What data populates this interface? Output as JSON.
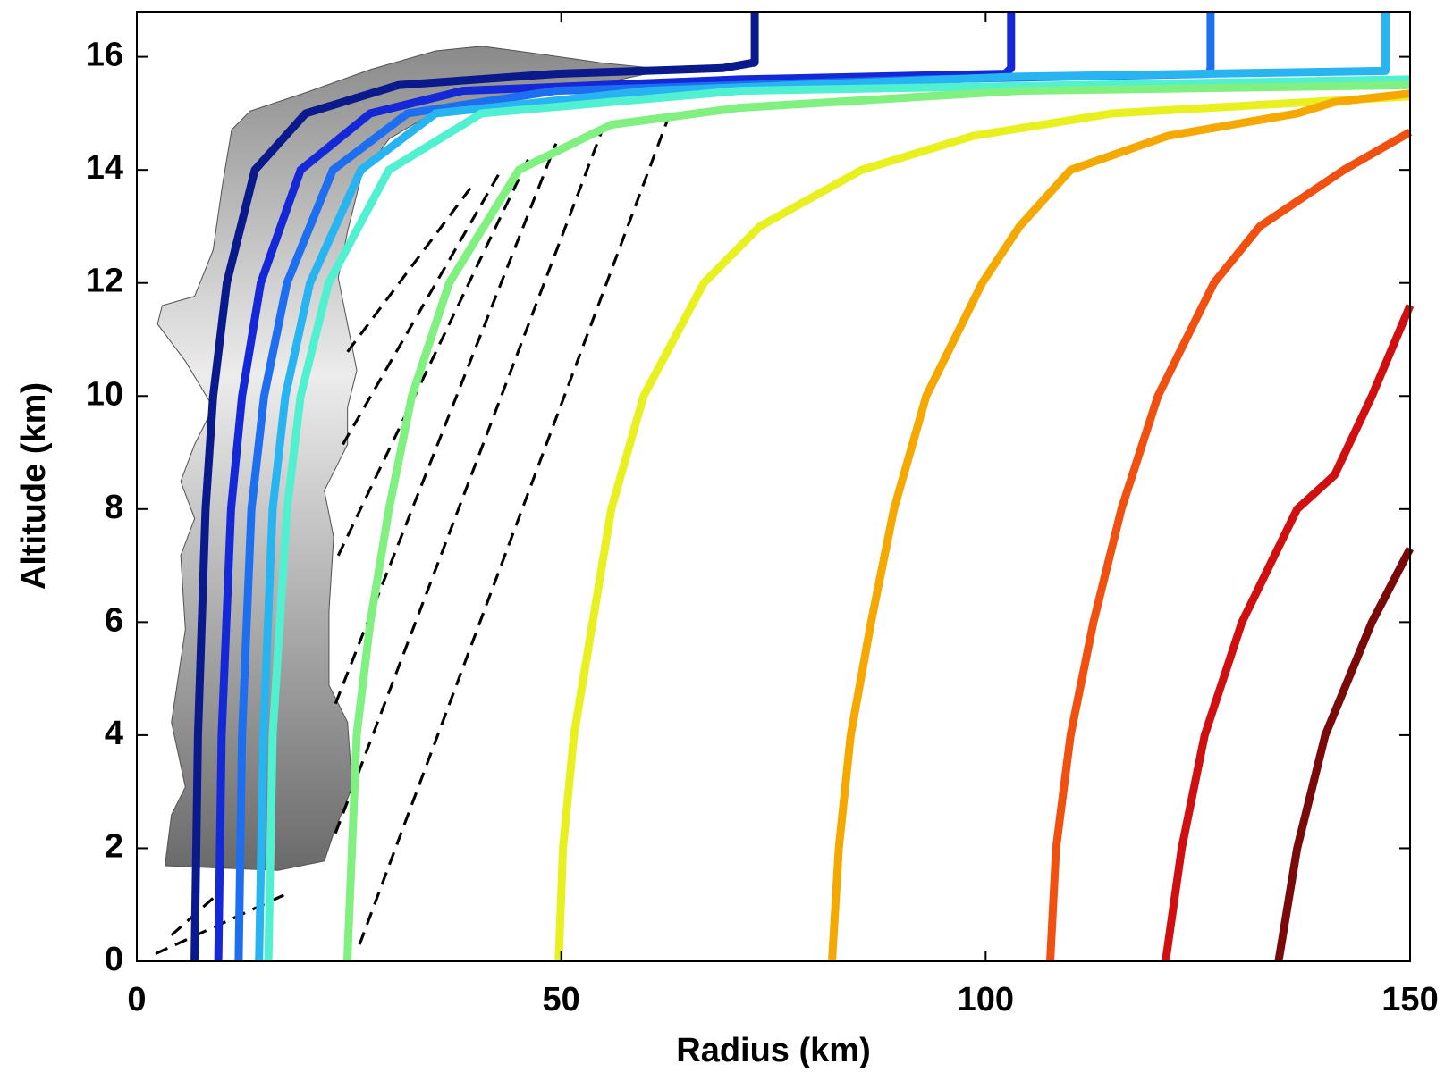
{
  "chart_data": {
    "type": "line",
    "xlabel": "Radius (km)",
    "ylabel": "Altitude (km)",
    "xlim": [
      0,
      150
    ],
    "xticks": [
      0,
      50,
      100,
      150
    ],
    "ylim": [
      0,
      16.8
    ],
    "yticks": [
      0,
      2,
      4,
      6,
      8,
      10,
      12,
      14,
      16
    ],
    "series": [
      {
        "color": "#0a1a8c",
        "x": [
          6.8,
          7.2,
          8.1,
          9.0,
          10.6,
          13.9,
          19.9,
          30.8,
          49.4,
          69,
          72.8,
          72.8
        ],
        "values": [
          0,
          4,
          8,
          10,
          12,
          14,
          15,
          15.5,
          15.7,
          15.8,
          15.9,
          16.8
        ]
      },
      {
        "color": "#1428d8",
        "x": [
          9.6,
          10.0,
          11.1,
          12.4,
          14.6,
          19.3,
          27.5,
          38.4,
          71,
          102.3,
          103,
          103
        ],
        "values": [
          0,
          4,
          8,
          10,
          12,
          14,
          15,
          15.4,
          15.6,
          15.7,
          15.8,
          16.8
        ]
      },
      {
        "color": "#1e6ef0",
        "x": [
          12,
          12.4,
          13.5,
          15,
          17.7,
          23.1,
          31.9,
          49.4,
          93,
          126.3,
          126.5,
          126.5
        ],
        "values": [
          0,
          4,
          8,
          10,
          12,
          14,
          15,
          15.4,
          15.6,
          15.7,
          15.8,
          16.8
        ]
      },
      {
        "color": "#28b4f0",
        "x": [
          14.4,
          14.9,
          16,
          17.5,
          20.4,
          26.4,
          35.2,
          60.3,
          104,
          147.1,
          147.1
        ],
        "values": [
          0,
          4,
          8,
          10,
          12,
          14,
          15,
          15.4,
          15.65,
          15.75,
          16.8
        ]
      },
      {
        "color": "#50f0d0",
        "x": [
          15.5,
          16,
          17.7,
          19.3,
          22.6,
          29.7,
          40.6,
          71,
          150
        ],
        "values": [
          0,
          4,
          8,
          10,
          12,
          14,
          15,
          15.4,
          15.6
        ]
      },
      {
        "color": "#80f080",
        "x": [
          24.8,
          25.9,
          27.5,
          29.7,
          32.4,
          36.8,
          45,
          55.9,
          71,
          104,
          150
        ],
        "values": [
          0,
          4,
          6,
          8,
          10,
          12,
          14,
          14.8,
          15.1,
          15.4,
          15.5
        ]
      },
      {
        "color": "#e8f020",
        "x": [
          49.7,
          50.2,
          51.5,
          53.7,
          55.9,
          59.7,
          66.8,
          73.4,
          85.4,
          98.5,
          114.9,
          150
        ],
        "values": [
          0,
          2,
          4,
          6,
          8,
          10,
          12,
          13,
          14,
          14.6,
          15,
          15.3
        ]
      },
      {
        "color": "#f5a800",
        "x": [
          81.9,
          82.7,
          84.1,
          86.5,
          89.2,
          93,
          99.6,
          104,
          110,
          121.4,
          136.7,
          141.1,
          150
        ],
        "values": [
          0,
          2,
          4,
          6,
          8,
          10,
          12,
          13,
          14,
          14.6,
          15,
          15.2,
          15.35
        ]
      },
      {
        "color": "#f05010",
        "x": [
          107.6,
          108.3,
          110,
          112.7,
          116,
          120.3,
          126.9,
          132.3,
          142.2,
          150
        ],
        "values": [
          0,
          2,
          4,
          6,
          8,
          10,
          12,
          13,
          14,
          14.67
        ]
      },
      {
        "color": "#d01010",
        "x": [
          121.2,
          123.1,
          125.8,
          130.2,
          136.7,
          141.1,
          145.5,
          150
        ],
        "values": [
          0,
          2,
          4,
          6,
          8,
          8.6,
          10,
          11.6
        ]
      },
      {
        "color": "#7a0a0a",
        "x": [
          134.5,
          136.7,
          140,
          145.5,
          150
        ],
        "values": [
          0,
          2,
          4,
          6,
          7.3
        ]
      }
    ]
  }
}
